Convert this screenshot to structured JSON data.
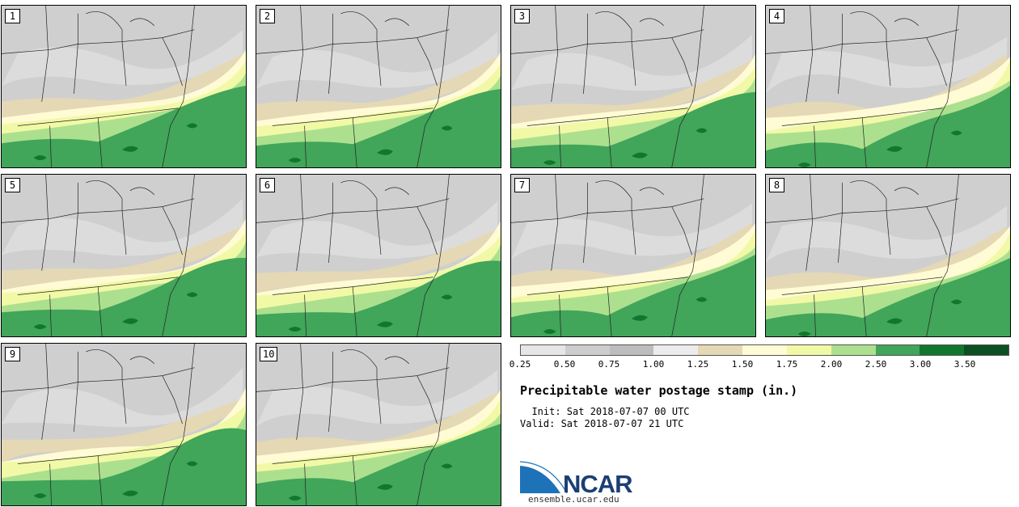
{
  "stamps": [
    {
      "label": "1"
    },
    {
      "label": "2"
    },
    {
      "label": "3"
    },
    {
      "label": "4"
    },
    {
      "label": "5"
    },
    {
      "label": "6"
    },
    {
      "label": "7"
    },
    {
      "label": "8"
    },
    {
      "label": "9"
    },
    {
      "label": "10"
    }
  ],
  "colorbar": {
    "ticks": [
      "0.25",
      "0.50",
      "0.75",
      "1.00",
      "1.25",
      "1.50",
      "1.75",
      "2.00",
      "2.50",
      "3.00",
      "3.50"
    ],
    "colors": [
      "#e6e6e6",
      "#cdcdcd",
      "#bdbdbd",
      "#ececec",
      "#e5d8b5",
      "#fffbd5",
      "#f1f9a7",
      "#ace08e",
      "#41a55a",
      "#11772f",
      "#0c4f22",
      "#0b2ba7"
    ]
  },
  "title": "Precipitable water postage stamp (in.)",
  "init": "  Init: Sat 2018-07-07 00 UTC",
  "valid": "Valid: Sat 2018-07-07 21 UTC",
  "logo": {
    "text": "NCAR",
    "site": "ensemble.ucar.edu",
    "color": "#1b3f74",
    "arc_color": "#1e73b8"
  },
  "map_colors": {
    "dry": "#cfcfcf",
    "light": "#dcdcdc",
    "tan": "#e5d8b5",
    "cream": "#fffbd5",
    "yellow": "#f1f9a7",
    "light_green": "#ace08e",
    "green": "#41a55a",
    "dark_green": "#11772f",
    "lines": "#222222"
  }
}
